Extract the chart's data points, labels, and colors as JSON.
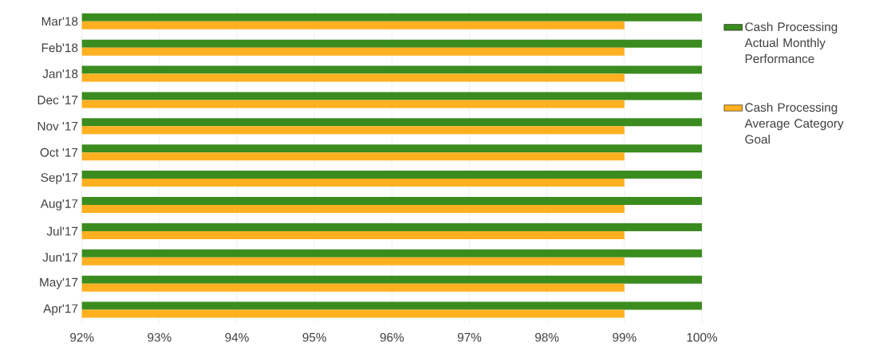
{
  "chart_data": {
    "type": "bar",
    "orientation": "horizontal",
    "categories": [
      "Mar'18",
      "Feb'18",
      "Jan'18",
      "Dec '17",
      "Nov '17",
      "Oct '17",
      "Sep'17",
      "Aug'17",
      "Jul'17",
      "Jun'17",
      "May'17",
      "Apr'17"
    ],
    "series": [
      {
        "name": "Cash Processing Actual Monthly Performance",
        "color": "#3b8c1f",
        "values": [
          100,
          100,
          100,
          100,
          100,
          100,
          100,
          100,
          100,
          100,
          100,
          100
        ]
      },
      {
        "name": "Cash Processing Average Category Goal",
        "color": "#ffb020",
        "values": [
          99,
          99,
          99,
          99,
          99,
          99,
          99,
          99,
          99,
          99,
          99,
          99
        ]
      }
    ],
    "xlim": [
      92,
      100
    ],
    "xticks": [
      {
        "value": 92,
        "label": "92%"
      },
      {
        "value": 93,
        "label": "93%"
      },
      {
        "value": 94,
        "label": "94%"
      },
      {
        "value": 95,
        "label": "95%"
      },
      {
        "value": 96,
        "label": "96%"
      },
      {
        "value": 97,
        "label": "97%"
      },
      {
        "value": 98,
        "label": "98%"
      },
      {
        "value": 99,
        "label": "99%"
      },
      {
        "value": 100,
        "label": "100%"
      }
    ],
    "grid": "x",
    "legend": "right"
  }
}
